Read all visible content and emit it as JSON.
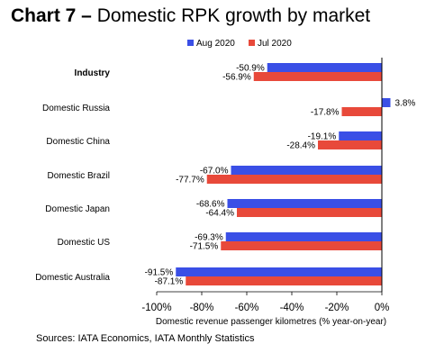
{
  "title": {
    "number": "Chart 7 –",
    "text": "Domestic RPK growth by market"
  },
  "source": "Sources: IATA Economics, IATA Monthly Statistics",
  "colors": {
    "aug": "#3a4fe6",
    "jul": "#e8493a"
  },
  "chart_data": {
    "type": "bar",
    "orientation": "horizontal",
    "title": "Chart 7 – Domestic RPK growth by market",
    "xlabel": "Domestic revenue passenger kilometres (% year-on-year)",
    "ylabel": "",
    "xlim": [
      -100,
      0
    ],
    "xticks": [
      -100,
      -80,
      -60,
      -40,
      -20,
      0
    ],
    "xtick_labels": [
      "-100%",
      "-80%",
      "-60%",
      "-40%",
      "-20%",
      "0%"
    ],
    "categories": [
      "Industry",
      "Domestic Russia",
      "Domestic China",
      "Domestic Brazil",
      "Domestic Japan",
      "Domestic US",
      "Domestic Australia"
    ],
    "category_bold": [
      true,
      false,
      false,
      false,
      false,
      false,
      false
    ],
    "legend_position": "top",
    "grid": false,
    "series": [
      {
        "name": "Aug 2020",
        "values": [
          -50.9,
          3.8,
          -19.1,
          -67.0,
          -68.6,
          -69.3,
          -91.5
        ],
        "labels": [
          "-50.9%",
          "3.8%",
          "-19.1%",
          "-67.0%",
          "-68.6%",
          "-69.3%",
          "-91.5%"
        ]
      },
      {
        "name": "Jul 2020",
        "values": [
          -56.9,
          -17.8,
          -28.4,
          -77.7,
          -64.4,
          -71.5,
          -87.1
        ],
        "labels": [
          "-56.9%",
          "-17.8%",
          "-28.4%",
          "-77.7%",
          "-64.4%",
          "-71.5%",
          "-87.1%"
        ]
      }
    ]
  }
}
